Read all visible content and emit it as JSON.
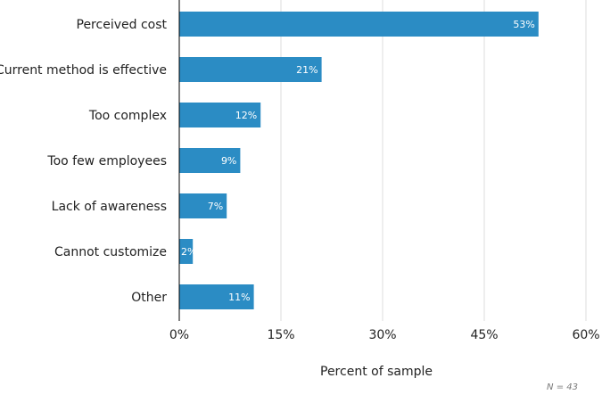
{
  "chart_data": {
    "type": "bar",
    "orientation": "horizontal",
    "categories": [
      "Perceived cost",
      "Current method is effective",
      "Too complex",
      "Too few employees",
      "Lack of awareness",
      "Cannot customize",
      "Other"
    ],
    "values": [
      53,
      21,
      12,
      9,
      7,
      2,
      11
    ],
    "data_labels": [
      "53%",
      "21%",
      "12%",
      "9%",
      "7%",
      "2%",
      "11%"
    ],
    "xlabel": "Percent of sample",
    "ylabel": "",
    "xlim": [
      0,
      60
    ],
    "xticks": [
      0,
      15,
      30,
      45,
      60
    ],
    "xtick_labels": [
      "0%",
      "15%",
      "30%",
      "45%",
      "60%"
    ],
    "grid": true,
    "note": "N = 43",
    "bar_color": "#2b8cc4"
  }
}
